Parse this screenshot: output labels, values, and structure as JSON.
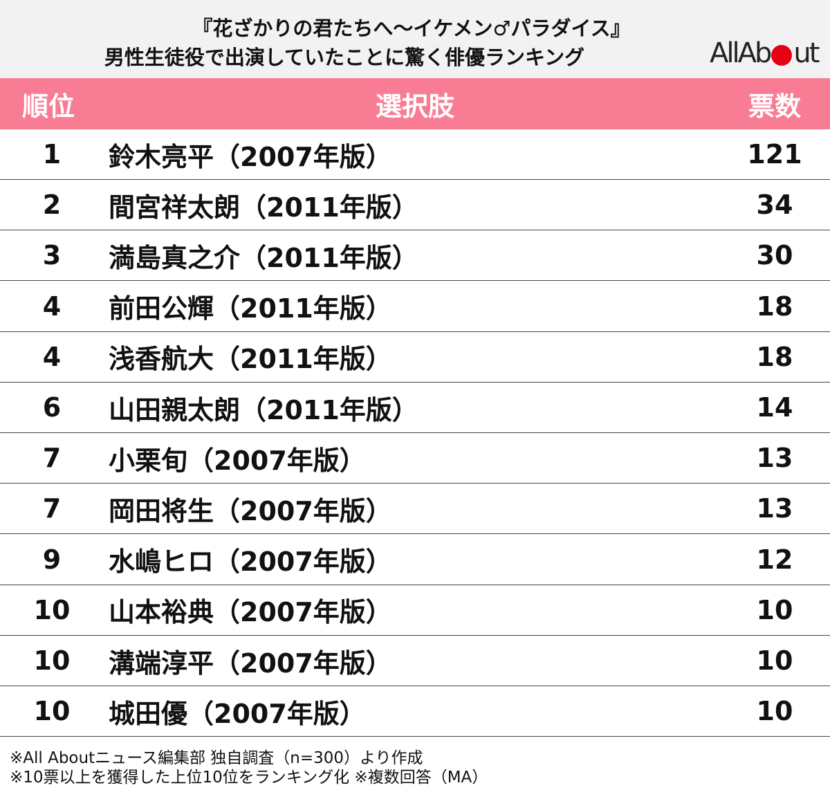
{
  "header": {
    "title": [
      "『花ざかりの君たちへ〜イケメン♂パラダイス』",
      "男性生徒役で出演していたことに驚く俳優ランキング"
    ],
    "logo": [
      "AllAb",
      "ut"
    ]
  },
  "table": {
    "columns": [
      "順位",
      "選択肢",
      "票数"
    ],
    "rows": [
      [
        1,
        "鈴木亮平（2007年版）",
        121
      ],
      [
        2,
        "間宮祥太朗（2011年版）",
        34
      ],
      [
        3,
        "満島真之介（2011年版）",
        30
      ],
      [
        4,
        "前田公輝（2011年版）",
        18
      ],
      [
        4,
        "浅香航大（2011年版）",
        18
      ],
      [
        6,
        "山田親太朗（2011年版）",
        14
      ],
      [
        7,
        "小栗旬（2007年版）",
        13
      ],
      [
        7,
        "岡田将生（2007年版）",
        13
      ],
      [
        9,
        "水嶋ヒロ（2007年版）",
        12
      ],
      [
        10,
        "山本裕典（2007年版）",
        10
      ],
      [
        10,
        "溝端淳平（2007年版）",
        10
      ],
      [
        10,
        "城田優（2007年版）",
        10
      ]
    ]
  },
  "notes": [
    "※All Aboutニュース編集部 独自調査（n=300）より作成",
    "※10票以上を獲得した上位10位をランキング化 ※複数回答（MA）"
  ]
}
